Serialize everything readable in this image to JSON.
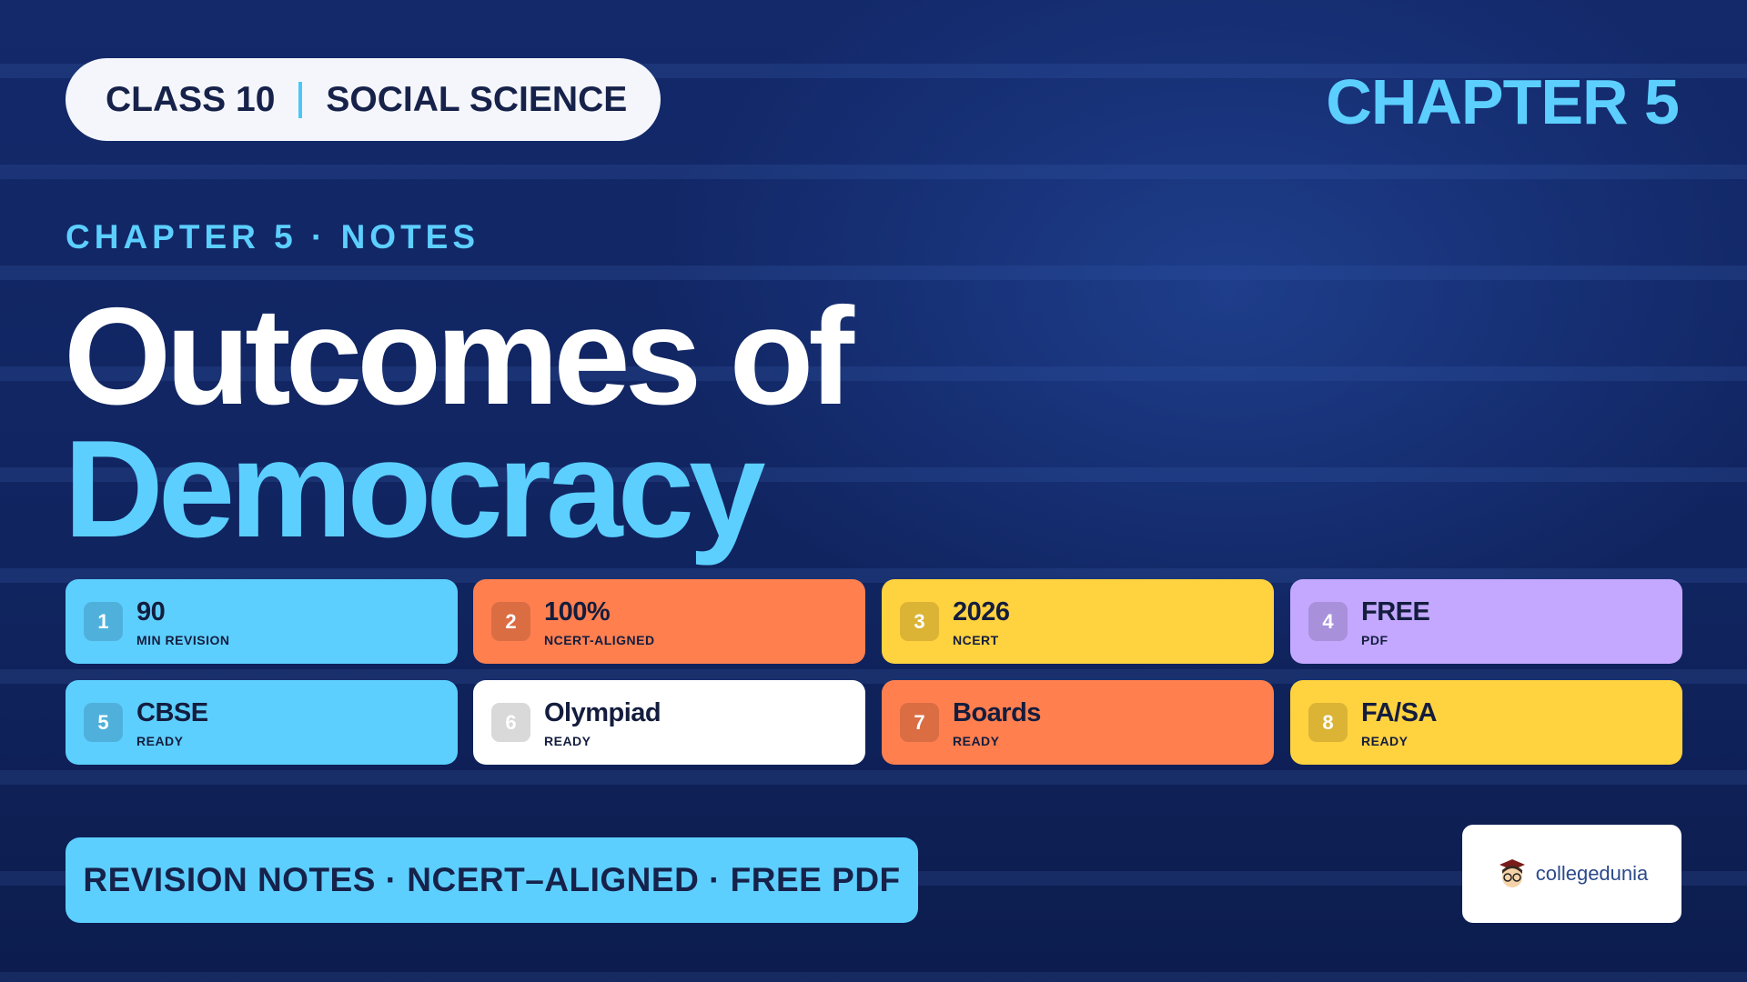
{
  "header": {
    "class": "CLASS 10",
    "subject": "SOCIAL SCIENCE",
    "chapter": "CHAPTER 5"
  },
  "kicker": "CHAPTER 5 · NOTES",
  "title": {
    "line1": "Outcomes of",
    "line2": "Democracy"
  },
  "cards": [
    {
      "number": "1",
      "value": "90",
      "label": "MIN REVISION"
    },
    {
      "number": "2",
      "value": "100%",
      "label": "NCERT-ALIGNED"
    },
    {
      "number": "3",
      "value": "2026",
      "label": "NCERT"
    },
    {
      "number": "4",
      "value": "FREE",
      "label": "PDF"
    },
    {
      "number": "5",
      "value": "CBSE",
      "label": "READY"
    },
    {
      "number": "6",
      "value": "Olympiad",
      "label": "READY"
    },
    {
      "number": "7",
      "value": "Boards",
      "label": "READY"
    },
    {
      "number": "8",
      "value": "FA/SA",
      "label": "READY"
    }
  ],
  "footer": "REVISION NOTES · NCERT–ALIGNED · FREE PDF",
  "logo": "collegedunia"
}
